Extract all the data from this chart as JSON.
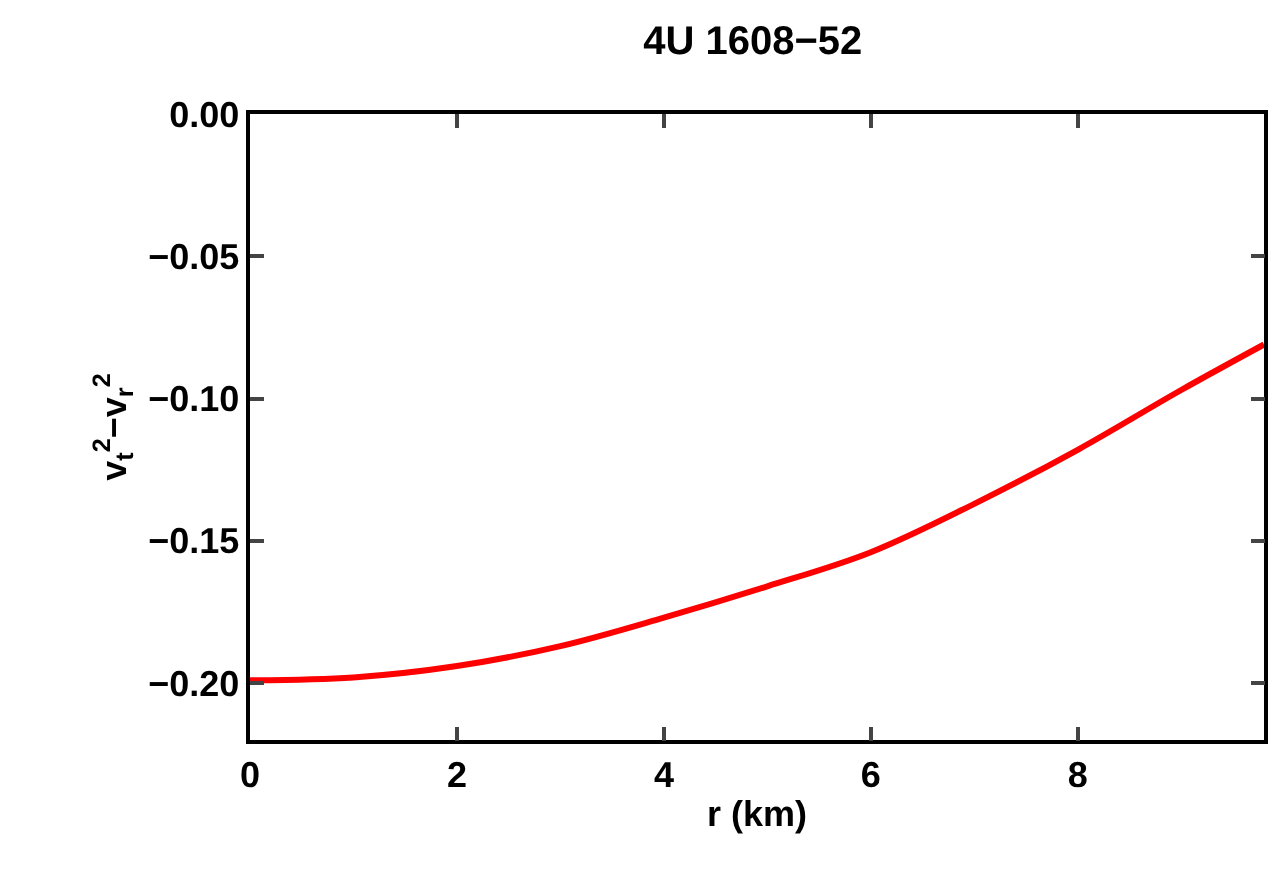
{
  "chart_data": {
    "type": "line",
    "title": "4U 1608−52",
    "xlabel": "r (km)",
    "ylabel": "v$_{t}$$^{2}$−v$_{r}$$^{2}$",
    "x": [
      0,
      1,
      2,
      3,
      4,
      5,
      6,
      7,
      8,
      9,
      9.8
    ],
    "series": [
      {
        "color": "#ff0000",
        "values": [
          -0.199,
          -0.198,
          -0.194,
          -0.187,
          -0.177,
          -0.166,
          -0.154,
          -0.137,
          -0.118,
          -0.097,
          -0.081
        ]
      }
    ],
    "xlim": [
      0,
      9.8
    ],
    "ylim": [
      -0.22,
      0
    ],
    "xticks": [
      0,
      2,
      4,
      6,
      8
    ],
    "yticks": [
      {
        "value": 0,
        "label": "0.00"
      },
      {
        "value": -0.05,
        "label": "−0.05"
      },
      {
        "value": -0.1,
        "label": "−0.10"
      },
      {
        "value": -0.15,
        "label": "−0.15"
      },
      {
        "value": -0.2,
        "label": "−0.20"
      }
    ],
    "marker": "none",
    "line_style": "solid"
  }
}
